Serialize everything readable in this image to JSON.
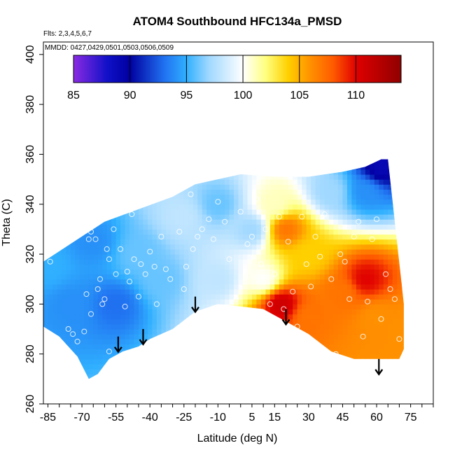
{
  "chart_data": {
    "type": "heatmap",
    "title": "ATOM4 Southbound HFC134a_PMSD",
    "annotations": [
      "Flts: 2,3,4,5,6,7",
      "MMDD: 0427,0429,0501,0503,0506,0509"
    ],
    "xlabel": "Latitude (deg N)",
    "ylabel": "Theta (C)",
    "xlim": [
      -87,
      85
    ],
    "ylim": [
      260,
      405
    ],
    "x_tick_labels": [
      "-85",
      "-70",
      "-55",
      "-40",
      "-25",
      "-10",
      "5",
      "15",
      "30",
      "45",
      "60",
      "75"
    ],
    "x_ticks": [
      -85,
      -70,
      -55,
      -40,
      -25,
      -10,
      5,
      15,
      30,
      45,
      60,
      75
    ],
    "y_ticks": [
      260,
      280,
      300,
      320,
      340,
      360,
      380,
      400
    ],
    "y_tick_labels": [
      "260",
      "280",
      "300",
      "320",
      "340",
      "360",
      "380",
      "400"
    ],
    "colorbar": {
      "min": 85,
      "max": 114,
      "ticks": [
        85,
        90,
        95,
        100,
        105,
        110
      ],
      "tick_labels": [
        "85",
        "90",
        "95",
        "100",
        "105",
        "110"
      ],
      "stops": [
        {
          "v": 85,
          "c": "#8a2be2"
        },
        {
          "v": 88,
          "c": "#1010c8"
        },
        {
          "v": 90,
          "c": "#0000a0"
        },
        {
          "v": 93,
          "c": "#2070f0"
        },
        {
          "v": 95,
          "c": "#30b0ff"
        },
        {
          "v": 97,
          "c": "#a0d8ff"
        },
        {
          "v": 100,
          "c": "#ffffff"
        },
        {
          "v": 102,
          "c": "#ffff80"
        },
        {
          "v": 104,
          "c": "#ffd000"
        },
        {
          "v": 106,
          "c": "#ff9000"
        },
        {
          "v": 108,
          "c": "#ff5a00"
        },
        {
          "v": 110,
          "c": "#e00000"
        },
        {
          "v": 114,
          "c": "#900000"
        }
      ]
    },
    "field": {
      "description_values": "estimated HFC134a_PMSD values at latitude/theta anchor points",
      "anchors": [
        {
          "lat": -85,
          "theta": 315,
          "v": 95
        },
        {
          "lat": -75,
          "theta": 300,
          "v": 94
        },
        {
          "lat": -65,
          "theta": 325,
          "v": 94
        },
        {
          "lat": -55,
          "theta": 300,
          "v": 93
        },
        {
          "lat": -45,
          "theta": 320,
          "v": 96
        },
        {
          "lat": -35,
          "theta": 310,
          "v": 96
        },
        {
          "lat": -25,
          "theta": 335,
          "v": 98
        },
        {
          "lat": -10,
          "theta": 340,
          "v": 96
        },
        {
          "lat": -10,
          "theta": 310,
          "v": 98
        },
        {
          "lat": 5,
          "theta": 330,
          "v": 97
        },
        {
          "lat": 10,
          "theta": 310,
          "v": 100
        },
        {
          "lat": 15,
          "theta": 340,
          "v": 101
        },
        {
          "lat": 20,
          "theta": 330,
          "v": 107
        },
        {
          "lat": 18,
          "theta": 300,
          "v": 111
        },
        {
          "lat": 30,
          "theta": 320,
          "v": 104
        },
        {
          "lat": 30,
          "theta": 295,
          "v": 107
        },
        {
          "lat": 45,
          "theta": 305,
          "v": 107
        },
        {
          "lat": 55,
          "theta": 310,
          "v": 110
        },
        {
          "lat": 60,
          "theta": 295,
          "v": 106
        },
        {
          "lat": 55,
          "theta": 345,
          "v": 94
        },
        {
          "lat": 62,
          "theta": 355,
          "v": 89
        },
        {
          "lat": 40,
          "theta": 345,
          "v": 97
        },
        {
          "lat": 70,
          "theta": 290,
          "v": 106
        }
      ]
    },
    "data_region": {
      "upper_boundary": [
        [
          -87,
          317
        ],
        [
          -60,
          333
        ],
        [
          -45,
          338
        ],
        [
          -30,
          343
        ],
        [
          -20,
          348
        ],
        [
          -10,
          350
        ],
        [
          0,
          352
        ],
        [
          15,
          351
        ],
        [
          30,
          351
        ],
        [
          45,
          353
        ],
        [
          55,
          355
        ],
        [
          62,
          358
        ],
        [
          65,
          358
        ]
      ],
      "lower_boundary": [
        [
          -87,
          291
        ],
        [
          -80,
          287
        ],
        [
          -72,
          279
        ],
        [
          -67,
          270
        ],
        [
          -63,
          272
        ],
        [
          -58,
          278
        ],
        [
          -52,
          281
        ],
        [
          -45,
          283
        ],
        [
          -40,
          286
        ],
        [
          -30,
          290
        ],
        [
          -20,
          297
        ],
        [
          -10,
          300
        ],
        [
          0,
          299
        ],
        [
          10,
          298
        ],
        [
          20,
          293
        ],
        [
          30,
          288
        ],
        [
          40,
          281
        ],
        [
          50,
          278
        ],
        [
          60,
          278
        ],
        [
          70,
          278
        ],
        [
          72,
          282
        ],
        [
          72,
          300
        ]
      ]
    },
    "sample_points": [
      [
        -84,
        317
      ],
      [
        -76,
        290
      ],
      [
        -74,
        288
      ],
      [
        -72,
        285
      ],
      [
        -69,
        289
      ],
      [
        -67,
        326
      ],
      [
        -66,
        329
      ],
      [
        -64,
        326
      ],
      [
        -63,
        306
      ],
      [
        -62,
        310
      ],
      [
        -61,
        300
      ],
      [
        -60,
        302
      ],
      [
        -59,
        322
      ],
      [
        -58,
        318
      ],
      [
        -56,
        330
      ],
      [
        -55,
        312
      ],
      [
        -53,
        322
      ],
      [
        -51,
        299
      ],
      [
        -50,
        313
      ],
      [
        -49,
        309
      ],
      [
        -48,
        336
      ],
      [
        -47,
        318
      ],
      [
        -45,
        303
      ],
      [
        -44,
        316
      ],
      [
        -42,
        312
      ],
      [
        -40,
        321
      ],
      [
        -38,
        315
      ],
      [
        -37,
        300
      ],
      [
        -35,
        327
      ],
      [
        -33,
        314
      ],
      [
        -31,
        310
      ],
      [
        -29,
        288
      ],
      [
        -27,
        329
      ],
      [
        -25,
        306
      ],
      [
        -24,
        315
      ],
      [
        -22,
        344
      ],
      [
        -21,
        322
      ],
      [
        -19,
        327
      ],
      [
        -17,
        330
      ],
      [
        -14,
        334
      ],
      [
        -12,
        326
      ],
      [
        -10,
        341
      ],
      [
        -7,
        333
      ],
      [
        -5,
        318
      ],
      [
        -2,
        302
      ],
      [
        0,
        337
      ],
      [
        3,
        324
      ],
      [
        5,
        327
      ],
      [
        7,
        342
      ],
      [
        9,
        316
      ],
      [
        11,
        330
      ],
      [
        13,
        300
      ],
      [
        15,
        312
      ],
      [
        17,
        335
      ],
      [
        19,
        298
      ],
      [
        21,
        325
      ],
      [
        23,
        305
      ],
      [
        25,
        291
      ],
      [
        27,
        335
      ],
      [
        29,
        316
      ],
      [
        31,
        307
      ],
      [
        33,
        327
      ],
      [
        35,
        319
      ],
      [
        37,
        336
      ],
      [
        40,
        310
      ],
      [
        42,
        280
      ],
      [
        44,
        320
      ],
      [
        46,
        317
      ],
      [
        48,
        302
      ],
      [
        50,
        327
      ],
      [
        52,
        333
      ],
      [
        54,
        287
      ],
      [
        56,
        301
      ],
      [
        58,
        326
      ],
      [
        60,
        334
      ],
      [
        62,
        294
      ],
      [
        64,
        312
      ],
      [
        66,
        306
      ],
      [
        68,
        302
      ],
      [
        70,
        286
      ],
      [
        -63,
        270
      ],
      [
        -58,
        281
      ],
      [
        -57,
        274
      ],
      [
        -68,
        304
      ],
      [
        -66,
        296
      ]
    ],
    "arrows": [
      {
        "lat": -54,
        "theta_start": 287
      },
      {
        "lat": -43,
        "theta_start": 290
      },
      {
        "lat": -20,
        "theta_start": 303
      },
      {
        "lat": 20,
        "theta_start": 298
      },
      {
        "lat": 61,
        "theta_start": 278
      }
    ]
  }
}
